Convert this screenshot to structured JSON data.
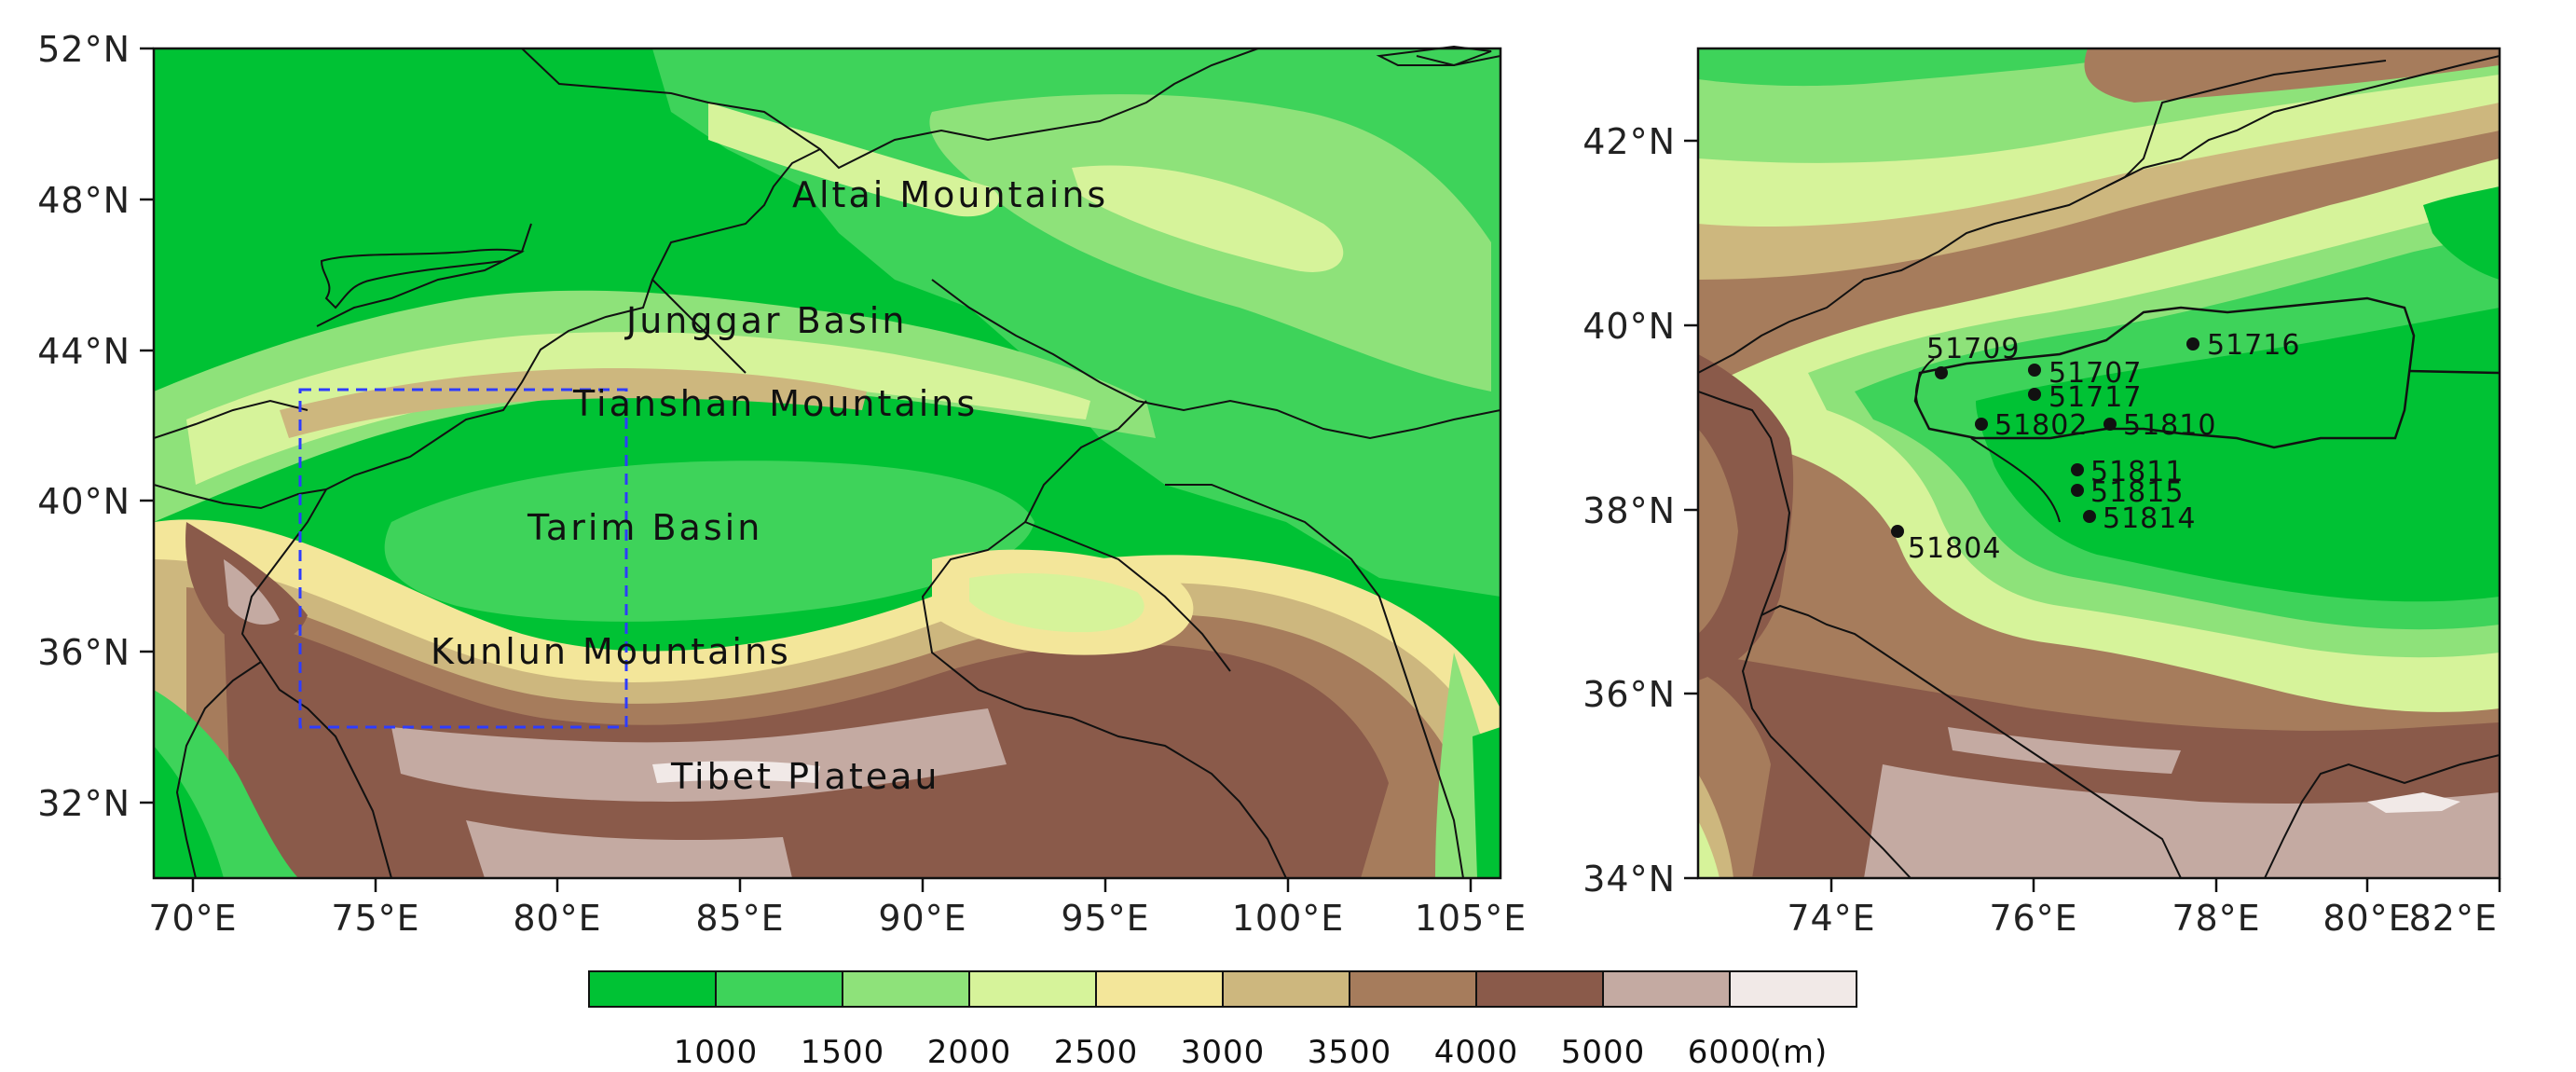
{
  "legend": {
    "colors": [
      "#00c234",
      "#3ed35a",
      "#8ee27a",
      "#d6f39a",
      "#f3e69a",
      "#cdb77e",
      "#a67c5c",
      "#8a5a4a",
      "#c4aaa2",
      "#f1e9e7"
    ],
    "labels": [
      "1000",
      "1500",
      "2000",
      "2500",
      "3000",
      "3500",
      "4000",
      "5000",
      "6000"
    ],
    "unit": "(m)"
  },
  "left_map": {
    "lat_ticks": [
      "52°N",
      "48°N",
      "44°N",
      "40°N",
      "36°N",
      "32°N"
    ],
    "lon_ticks": [
      "70°E",
      "75°E",
      "80°E",
      "85°E",
      "90°E",
      "95°E",
      "100°E",
      "105°E"
    ],
    "places": {
      "altai": "Altai Mountains",
      "junggar": "Junggar Basin",
      "tianshan": "Tianshan Mountains",
      "tarim": "Tarim Basin",
      "kunlun": "Kunlun Mountains",
      "tibet": "Tibet Plateau"
    }
  },
  "right_map": {
    "lat_ticks": [
      "42°N",
      "40°N",
      "38°N",
      "36°N",
      "34°N"
    ],
    "lon_ticks": [
      "74°E",
      "76°E",
      "78°E",
      "80°E",
      "82°E"
    ],
    "stations": [
      "51709",
      "51707",
      "51717",
      "51716",
      "51802",
      "51810",
      "51811",
      "51815",
      "51814",
      "51804"
    ]
  }
}
